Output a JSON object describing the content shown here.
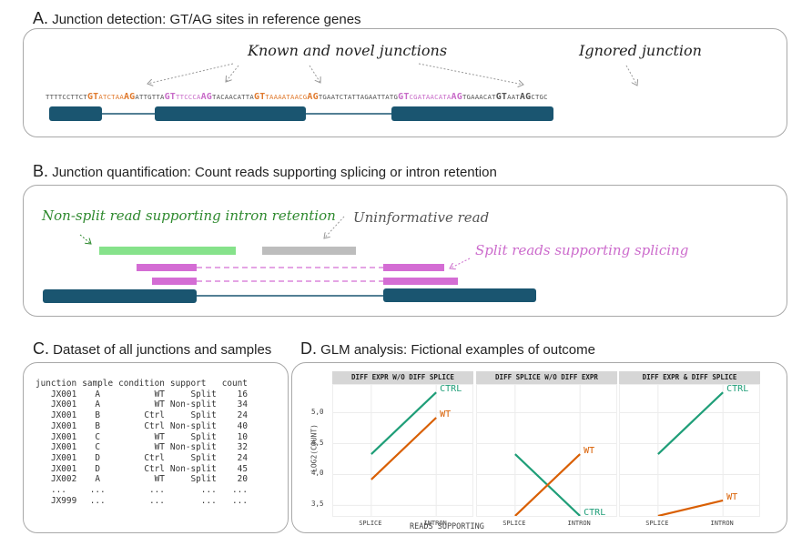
{
  "sections": {
    "a": {
      "letter": "A.",
      "title": "Junction detection: GT/AG sites in reference genes"
    },
    "b": {
      "letter": "B.",
      "title": "Junction quantification: Count reads supporting splicing or intron retention"
    },
    "c": {
      "letter": "C.",
      "title": "Dataset of all junctions and samples"
    },
    "d": {
      "letter": "D.",
      "title": "GLM analysis: Fictional examples of outcome"
    }
  },
  "panel_a": {
    "known_label": "Known and novel junctions",
    "ignored_label": "Ignored junction",
    "sequence": [
      {
        "t": "TTTTCCTTCT",
        "c": "g",
        "b": false
      },
      {
        "t": "GT",
        "c": "o",
        "b": true
      },
      {
        "t": "ATCTAA",
        "c": "o",
        "b": false
      },
      {
        "t": "AG",
        "c": "o",
        "b": true
      },
      {
        "t": "ATTGTTA",
        "c": "g",
        "b": false
      },
      {
        "t": "GT",
        "c": "m",
        "b": true
      },
      {
        "t": "TTCCCA",
        "c": "m",
        "b": false
      },
      {
        "t": "AG",
        "c": "m",
        "b": true
      },
      {
        "t": "TACAACATTA",
        "c": "g",
        "b": false
      },
      {
        "t": "GT",
        "c": "o",
        "b": true
      },
      {
        "t": "TAAAATAACG",
        "c": "o",
        "b": false
      },
      {
        "t": "AG",
        "c": "o",
        "b": true
      },
      {
        "t": "TGAATCTATTAGAATTATG",
        "c": "g",
        "b": false
      },
      {
        "t": "GT",
        "c": "m",
        "b": true
      },
      {
        "t": "CGATAACATA",
        "c": "m",
        "b": false
      },
      {
        "t": "AG",
        "c": "m",
        "b": true
      },
      {
        "t": "TGAAACAT",
        "c": "g",
        "b": false
      },
      {
        "t": "GT",
        "c": "g",
        "b": true
      },
      {
        "t": "AAT",
        "c": "g",
        "b": false
      },
      {
        "t": "AG",
        "c": "g",
        "b": true
      },
      {
        "t": "CTGC",
        "c": "g",
        "b": false
      }
    ]
  },
  "panel_b": {
    "nonsplit_label": "Non-split read supporting intron retention",
    "uninformative_label": "Uninformative read",
    "split_label": "Split reads supporting splicing"
  },
  "dataset": {
    "columns": [
      "junction",
      "sample",
      "condition",
      "support",
      "count"
    ],
    "rows": [
      [
        "JX001",
        "A",
        "WT",
        "Split",
        "16"
      ],
      [
        "JX001",
        "A",
        "WT",
        "Non-split",
        "34"
      ],
      [
        "JX001",
        "B",
        "Ctrl",
        "Split",
        "24"
      ],
      [
        "JX001",
        "B",
        "Ctrl",
        "Non-split",
        "40"
      ],
      [
        "JX001",
        "C",
        "WT",
        "Split",
        "10"
      ],
      [
        "JX001",
        "C",
        "WT",
        "Non-split",
        "32"
      ],
      [
        "JX001",
        "D",
        "Ctrl",
        "Split",
        "24"
      ],
      [
        "JX001",
        "D",
        "Ctrl",
        "Non-split",
        "45"
      ],
      [
        "JX002",
        "A",
        "WT",
        "Split",
        "20"
      ],
      [
        "...",
        "...",
        "...",
        "...",
        "..."
      ],
      [
        "JX999",
        "...",
        "...",
        "...",
        "..."
      ]
    ]
  },
  "glm": {
    "ylabel": "LOG2(COUNT)",
    "xlabel": "READS SUPPORTING",
    "x_categories": [
      "SPLICE",
      "INTRON"
    ],
    "y_ticks": [
      "3,5",
      "4,0",
      "4,5",
      "5,0"
    ],
    "y_range": [
      3.3,
      5.45
    ],
    "colors": {
      "CTRL": "#1f9e78",
      "WT": "#d95f02"
    },
    "facets": [
      {
        "title": "DIFF EXPR W/O DIFF SPLICE",
        "series": [
          {
            "name": "CTRL",
            "values": [
              4.33,
              5.33
            ]
          },
          {
            "name": "WT",
            "values": [
              3.92,
              4.92
            ]
          }
        ]
      },
      {
        "title": "DIFF SPLICE W/O DIFF EXPR",
        "series": [
          {
            "name": "CTRL",
            "values": [
              4.33,
              3.33
            ]
          },
          {
            "name": "WT",
            "values": [
              3.33,
              4.33
            ]
          }
        ]
      },
      {
        "title": "DIFF EXPR & DIFF SPLICE",
        "series": [
          {
            "name": "CTRL",
            "values": [
              4.33,
              5.33
            ]
          },
          {
            "name": "WT",
            "values": [
              3.33,
              3.58
            ]
          }
        ]
      }
    ]
  }
}
